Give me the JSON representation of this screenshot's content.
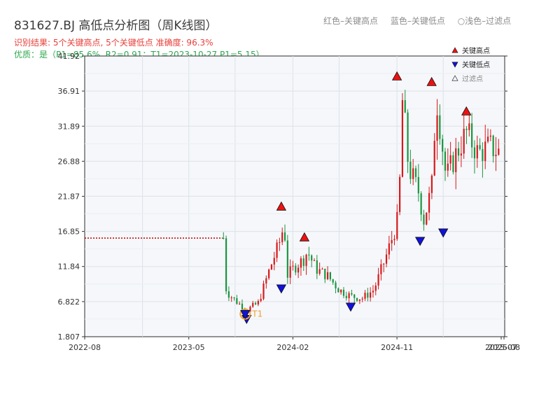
{
  "header": {
    "title": "831627.BJ 高低点分析图（周K线图）",
    "legend_red": "红色–关键高点",
    "legend_blue": "蓝色–关键低点",
    "legend_light": "○浅色–过滤点",
    "result": "识别结果: 5个关键高点, 5个关键低点  准确度: 96.3%",
    "quality": "优质：是（P1=85.6%, R2=0.91；T1=2023-10-27 P1=5.15）"
  },
  "colors": {
    "up": "#d7191c",
    "down": "#1a9641",
    "high_marker": "#ee1111",
    "low_marker": "#1111dd",
    "t1_marker": "#f0a030",
    "dotted_line": "#c00000",
    "plot_bg": "#f5f7fa",
    "grid": "#dde1e6"
  },
  "chart_data": {
    "type": "candlestick",
    "y_ticks": [
      "1.807",
      "6.822",
      "11.84",
      "16.85",
      "21.87",
      "26.88",
      "31.89",
      "36.91",
      "41.92"
    ],
    "x_ticks": [
      "2022-08",
      "2023-05",
      "2024-02",
      "2024-11",
      "2025-07",
      "2025-08"
    ],
    "ylim": [
      1.807,
      41.92
    ],
    "legend": {
      "high": "关键高点",
      "low": "关键低点",
      "filtered": "过滤点"
    },
    "reference_line": {
      "value": 15.9,
      "x_start": "2022-08",
      "x_end": "2023-08"
    },
    "t1": {
      "label": "T1",
      "date": "2023-10-27",
      "price": 5.15
    },
    "key_highs": [
      {
        "date": "2024-01",
        "price": 19.4
      },
      {
        "date": "2024-03",
        "price": 15.0
      },
      {
        "date": "2024-11",
        "price": 38.0
      },
      {
        "date": "2025-02",
        "price": 37.2
      },
      {
        "date": "2025-05",
        "price": 33.0
      }
    ],
    "key_lows": [
      {
        "date": "2024-01",
        "price": 9.5
      },
      {
        "date": "2024-07",
        "price": 6.9
      },
      {
        "date": "2025-01",
        "price": 16.3
      },
      {
        "date": "2025-03",
        "price": 17.5
      },
      {
        "date": "2023-10",
        "price": 5.15
      }
    ],
    "price_path": [
      [
        "2023-08",
        15.9
      ],
      [
        "2023-08",
        8.3
      ],
      [
        "2023-09",
        7.0
      ],
      [
        "2023-10",
        5.6
      ],
      [
        "2023-11",
        6.6
      ],
      [
        "2023-12",
        11.5
      ],
      [
        "2024-01",
        16.0
      ],
      [
        "2024-01",
        18.5
      ],
      [
        "2024-01",
        10.5
      ],
      [
        "2024-02",
        11.5
      ],
      [
        "2024-03",
        13.0
      ],
      [
        "2024-03",
        14.0
      ],
      [
        "2024-04",
        11.5
      ],
      [
        "2024-05",
        10.5
      ],
      [
        "2024-06",
        8.5
      ],
      [
        "2024-07",
        7.6
      ],
      [
        "2024-08",
        7.3
      ],
      [
        "2024-09",
        8.5
      ],
      [
        "2024-10",
        13.0
      ],
      [
        "2024-11",
        18.0
      ],
      [
        "2024-11",
        24.0
      ],
      [
        "2024-11",
        36.0
      ],
      [
        "2024-12",
        26.0
      ],
      [
        "2025-01",
        22.0
      ],
      [
        "2025-01",
        18.0
      ],
      [
        "2025-02",
        23.0
      ],
      [
        "2025-02",
        31.0
      ],
      [
        "2025-02",
        35.5
      ],
      [
        "2025-03",
        28.0
      ],
      [
        "2025-03",
        24.5
      ],
      [
        "2025-04",
        27.5
      ],
      [
        "2025-05",
        31.0
      ],
      [
        "2025-06",
        28.0
      ],
      [
        "2025-07",
        29.0
      ],
      [
        "2025-08",
        28.0
      ]
    ]
  }
}
